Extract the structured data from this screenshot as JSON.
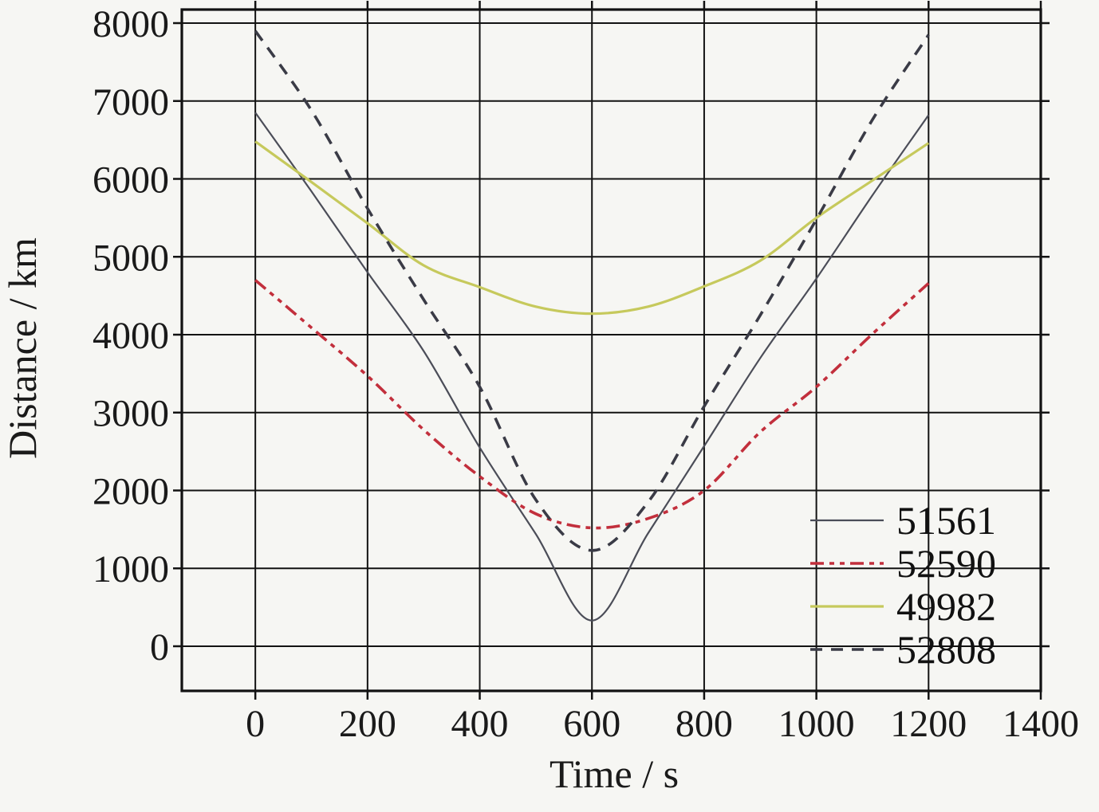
{
  "figure_title": "",
  "chart_data": {
    "type": "line",
    "title": "",
    "xlabel": "Time / s",
    "ylabel": "Distance / km",
    "xlim": [
      -131,
      1400
    ],
    "ylim": [
      -573,
      8174
    ],
    "xticks": [
      0,
      200,
      400,
      600,
      800,
      1000,
      1200,
      1400
    ],
    "yticks": [
      0,
      1000,
      2000,
      3000,
      4000,
      5000,
      6000,
      7000,
      8000
    ],
    "grid": true,
    "grid_color": "#121212",
    "border_color": "#121212",
    "background_color": "#f6f6f3",
    "legend_position": "lower-right",
    "legend_border": false,
    "series": [
      {
        "name": "51561",
        "color": "#4b4d58",
        "style": "solid",
        "width": 2.2,
        "points": [
          [
            0,
            6850
          ],
          [
            100,
            5840
          ],
          [
            200,
            4800
          ],
          [
            300,
            3790
          ],
          [
            400,
            2550
          ],
          [
            500,
            1440
          ],
          [
            600,
            330
          ],
          [
            700,
            1450
          ],
          [
            800,
            2570
          ],
          [
            900,
            3700
          ],
          [
            1000,
            4720
          ],
          [
            1100,
            5790
          ],
          [
            1200,
            6820
          ]
        ]
      },
      {
        "name": "52590",
        "color": "#c22f3c",
        "style": "dash-dot-dot",
        "width": 3.6,
        "points": [
          [
            0,
            4700
          ],
          [
            100,
            4090
          ],
          [
            200,
            3470
          ],
          [
            300,
            2780
          ],
          [
            400,
            2180
          ],
          [
            500,
            1700
          ],
          [
            600,
            1520
          ],
          [
            700,
            1640
          ],
          [
            800,
            2000
          ],
          [
            900,
            2750
          ],
          [
            1000,
            3330
          ],
          [
            1100,
            4010
          ],
          [
            1200,
            4660
          ]
        ]
      },
      {
        "name": "49982",
        "color": "#c6c95c",
        "style": "solid",
        "width": 3.2,
        "points": [
          [
            0,
            6480
          ],
          [
            100,
            5960
          ],
          [
            200,
            5430
          ],
          [
            300,
            4890
          ],
          [
            400,
            4610
          ],
          [
            500,
            4360
          ],
          [
            600,
            4270
          ],
          [
            700,
            4360
          ],
          [
            800,
            4620
          ],
          [
            900,
            4950
          ],
          [
            1000,
            5500
          ],
          [
            1100,
            5980
          ],
          [
            1200,
            6460
          ]
        ]
      },
      {
        "name": "52808",
        "color": "#3a3b46",
        "style": "dashed",
        "width": 3.6,
        "points": [
          [
            0,
            7900
          ],
          [
            100,
            6880
          ],
          [
            200,
            5620
          ],
          [
            300,
            4450
          ],
          [
            400,
            3330
          ],
          [
            500,
            1880
          ],
          [
            600,
            1230
          ],
          [
            700,
            1850
          ],
          [
            800,
            3080
          ],
          [
            900,
            4250
          ],
          [
            1000,
            5480
          ],
          [
            1100,
            6760
          ],
          [
            1200,
            7850
          ]
        ]
      }
    ]
  }
}
